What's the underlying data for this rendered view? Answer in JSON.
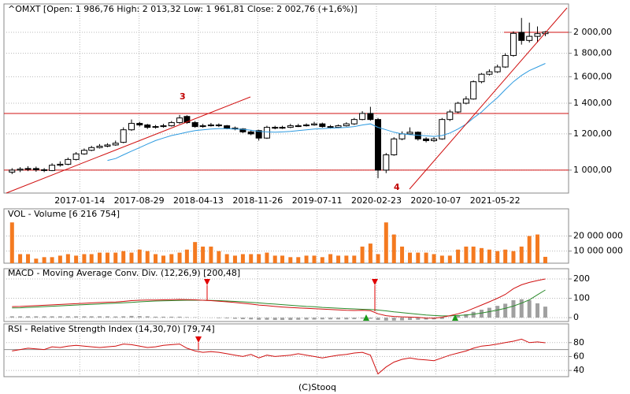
{
  "chart_data": [
    {
      "type": "candlestick",
      "title": "^OMXT [Open: 1 986,76  High: 2 013,32  Low: 1 961,81  Close: 2 002,76 (+1,6%)]",
      "x": [
        "2016-04-30",
        "2016-05-31",
        "2016-06-30",
        "2016-07-31",
        "2016-08-31",
        "2016-09-30",
        "2016-10-31",
        "2016-11-30",
        "2016-12-31",
        "2017-01-31",
        "2017-02-28",
        "2017-03-31",
        "2017-04-30",
        "2017-05-31",
        "2017-06-30",
        "2017-07-31",
        "2017-08-31",
        "2017-09-30",
        "2017-10-31",
        "2017-11-30",
        "2017-12-31",
        "2018-01-31",
        "2018-02-28",
        "2018-03-31",
        "2018-04-30",
        "2018-05-31",
        "2018-06-30",
        "2018-07-31",
        "2018-08-31",
        "2018-09-30",
        "2018-10-31",
        "2018-11-30",
        "2018-12-31",
        "2019-01-31",
        "2019-02-28",
        "2019-03-31",
        "2019-04-30",
        "2019-05-31",
        "2019-06-30",
        "2019-07-31",
        "2019-08-31",
        "2019-09-30",
        "2019-10-31",
        "2019-11-30",
        "2019-12-31",
        "2020-01-31",
        "2020-02-29",
        "2020-03-31",
        "2020-04-30",
        "2020-05-31",
        "2020-06-30",
        "2020-07-31",
        "2020-08-31",
        "2020-09-30",
        "2020-10-31",
        "2020-11-30",
        "2020-12-31",
        "2021-01-31",
        "2021-02-28",
        "2021-03-31",
        "2021-04-30",
        "2021-05-31",
        "2021-06-30",
        "2021-07-31",
        "2021-08-31",
        "2021-09-30",
        "2021-10-31",
        "2021-11-30"
      ],
      "open": [
        990,
        1000,
        1005,
        1008,
        1002,
        998,
        1025,
        1030,
        1055,
        1085,
        1105,
        1120,
        1128,
        1135,
        1150,
        1225,
        1265,
        1255,
        1240,
        1245,
        1250,
        1270,
        1310,
        1270,
        1245,
        1250,
        1255,
        1250,
        1235,
        1230,
        1212,
        1220,
        1175,
        1240,
        1235,
        1240,
        1250,
        1250,
        1255,
        1262,
        1245,
        1240,
        1250,
        1262,
        1290,
        1330,
        1290,
        1000,
        1080,
        1170,
        1200,
        1210,
        1170,
        1160,
        1170,
        1290,
        1340,
        1400,
        1430,
        1560,
        1620,
        1640,
        1680,
        1780,
        2000,
        1920,
        1960,
        1986.76
      ],
      "high": [
        1010,
        1015,
        1020,
        1018,
        1010,
        1035,
        1045,
        1065,
        1095,
        1115,
        1130,
        1140,
        1145,
        1160,
        1240,
        1290,
        1275,
        1262,
        1255,
        1262,
        1280,
        1320,
        1318,
        1280,
        1262,
        1268,
        1265,
        1255,
        1245,
        1235,
        1222,
        1225,
        1250,
        1250,
        1250,
        1262,
        1262,
        1265,
        1275,
        1270,
        1255,
        1258,
        1272,
        1300,
        1345,
        1375,
        1300,
        1090,
        1180,
        1215,
        1240,
        1215,
        1180,
        1180,
        1300,
        1355,
        1410,
        1450,
        1570,
        1630,
        1660,
        1700,
        1800,
        2010,
        2150,
        2100,
        2060,
        2013.32
      ],
      "low": [
        980,
        990,
        995,
        992,
        990,
        995,
        1018,
        1025,
        1050,
        1080,
        1100,
        1115,
        1122,
        1130,
        1145,
        1218,
        1245,
        1230,
        1232,
        1238,
        1245,
        1262,
        1262,
        1238,
        1238,
        1245,
        1242,
        1228,
        1222,
        1205,
        1192,
        1160,
        1170,
        1228,
        1230,
        1235,
        1242,
        1245,
        1250,
        1238,
        1232,
        1235,
        1245,
        1255,
        1285,
        1282,
        960,
        985,
        1075,
        1162,
        1195,
        1160,
        1150,
        1152,
        1165,
        1280,
        1332,
        1392,
        1425,
        1548,
        1610,
        1630,
        1672,
        1770,
        1880,
        1900,
        1900,
        1961.81
      ],
      "close": [
        1000,
        1005,
        1008,
        1002,
        998,
        1025,
        1030,
        1055,
        1085,
        1105,
        1120,
        1128,
        1135,
        1145,
        1225,
        1265,
        1255,
        1240,
        1245,
        1250,
        1270,
        1300,
        1270,
        1245,
        1250,
        1255,
        1250,
        1235,
        1230,
        1212,
        1200,
        1175,
        1240,
        1235,
        1240,
        1250,
        1250,
        1255,
        1262,
        1245,
        1240,
        1250,
        1262,
        1290,
        1330,
        1290,
        1000,
        1080,
        1170,
        1200,
        1210,
        1170,
        1160,
        1170,
        1290,
        1340,
        1400,
        1430,
        1560,
        1620,
        1640,
        1680,
        1780,
        1990,
        1920,
        1960,
        1986.76,
        2002.76
      ],
      "ma": {
        "color": "#2e9be0",
        "values": [
          null,
          null,
          null,
          null,
          null,
          null,
          null,
          null,
          null,
          null,
          null,
          null,
          1050,
          1060,
          1080,
          1100,
          1120,
          1140,
          1160,
          1175,
          1190,
          1200,
          1210,
          1220,
          1225,
          1230,
          1232,
          1232,
          1230,
          1228,
          1222,
          1215,
          1212,
          1210,
          1212,
          1215,
          1220,
          1225,
          1230,
          1232,
          1235,
          1237,
          1240,
          1245,
          1255,
          1262,
          1240,
          1225,
          1210,
          1200,
          1195,
          1192,
          1188,
          1185,
          1190,
          1205,
          1230,
          1260,
          1300,
          1340,
          1390,
          1440,
          1500,
          1560,
          1610,
          1650,
          1680,
          1710
        ]
      },
      "xlim": [
        "2016-04-08",
        "2022-02-27"
      ],
      "xticks": [
        "2017-01-14",
        "2017-08-29",
        "2018-04-13",
        "2018-11-26",
        "2019-07-11",
        "2020-02-23",
        "2020-10-07",
        "2021-05-22"
      ],
      "ylim": [
        891,
        2307
      ],
      "log_scale": true,
      "yticks": [
        {
          "value": 1000,
          "label": "1 000,00"
        },
        {
          "value": 1200,
          "label": "1 200,00"
        },
        {
          "value": 1400,
          "label": "1 400,00"
        },
        {
          "value": 1600,
          "label": "1 600,00"
        },
        {
          "value": 1800,
          "label": "1 800,00"
        },
        {
          "value": 2000,
          "label": "2 000,00"
        }
      ],
      "grid": true,
      "levels": [
        1330,
        1000,
        2000
      ],
      "level_color": "#d01010",
      "annotations": [
        "3",
        "4"
      ]
    },
    {
      "type": "bar",
      "title": "VOL - Volume [6 216 754]",
      "color": "#f47a20",
      "values": [
        29000000,
        8000000,
        8000000,
        5000000,
        6000000,
        6000000,
        7000000,
        8000000,
        7000000,
        8000000,
        8000000,
        9000000,
        9000000,
        9000000,
        10000000,
        9000000,
        11000000,
        10000000,
        8000000,
        7000000,
        8000000,
        9000000,
        11000000,
        16000000,
        13000000,
        13000000,
        10000000,
        8000000,
        7000000,
        8000000,
        8000000,
        8000000,
        9000000,
        7000000,
        7000000,
        6000000,
        6000000,
        7000000,
        7000000,
        6000000,
        8000000,
        7000000,
        7000000,
        7000000,
        13000000,
        15000000,
        8000000,
        29000000,
        21000000,
        13000000,
        9000000,
        9000000,
        9000000,
        8000000,
        7000000,
        7000000,
        11000000,
        13000000,
        13000000,
        12000000,
        11000000,
        10000000,
        11000000,
        10000000,
        13000000,
        20000000,
        21000000,
        6216754
      ],
      "ylim": [
        2000000,
        38000000
      ],
      "yticks": [
        {
          "value": 10000000,
          "label": "10 000 000"
        },
        {
          "value": 20000000,
          "label": "20 000 000"
        }
      ],
      "grid": true
    },
    {
      "type": "macd",
      "title": "MACD - Moving Average Conv. Div. (12,26,9) [200,48]",
      "series": [
        {
          "kind": "bar",
          "color": "#a0a0a0",
          "values": [
            7,
            7,
            7,
            7,
            7,
            7,
            7,
            7,
            7,
            7,
            7,
            7,
            7,
            6,
            7,
            9,
            8,
            7,
            5,
            5,
            5,
            5,
            3,
            2,
            0,
            -1,
            -3,
            -4,
            -6,
            -8,
            -9,
            -11,
            -11,
            -12,
            -12,
            -12,
            -11,
            -10,
            -10,
            -9,
            -9,
            -9,
            -9,
            -8,
            -5,
            -6,
            -12,
            -15,
            -15,
            -14,
            -12,
            -11,
            -10,
            -9,
            -7,
            1,
            9,
            18,
            30,
            41,
            51,
            61,
            72,
            90,
            95,
            90,
            74,
            57
          ]
        },
        {
          "kind": "line",
          "color": "#2a8a2a",
          "values": [
            50,
            51,
            53,
            55,
            57,
            59,
            61,
            63,
            65,
            67,
            69,
            71,
            73,
            75,
            77,
            79,
            82,
            84,
            86,
            87,
            88,
            89,
            90,
            90,
            90,
            89,
            88,
            86,
            84,
            82,
            79,
            76,
            73,
            70,
            67,
            64,
            61,
            58,
            56,
            53,
            51,
            49,
            47,
            45,
            43,
            42,
            39,
            35,
            30,
            26,
            22,
            18,
            14,
            11,
            9,
            9,
            11,
            14,
            18,
            24,
            31,
            39,
            48,
            60,
            75,
            92,
            118,
            143
          ]
        },
        {
          "kind": "line",
          "color": "#d01010",
          "values": [
            57,
            58,
            60,
            62,
            64,
            66,
            68,
            70,
            72,
            74,
            76,
            78,
            80,
            81,
            84,
            88,
            90,
            91,
            91,
            92,
            93,
            94,
            93,
            92,
            90,
            88,
            85,
            82,
            78,
            74,
            70,
            65,
            62,
            58,
            55,
            52,
            50,
            48,
            46,
            44,
            42,
            40,
            38,
            37,
            38,
            36,
            20,
            10,
            6,
            4,
            3,
            1,
            -2,
            -3,
            2,
            10,
            20,
            32,
            48,
            65,
            82,
            100,
            120,
            150,
            170,
            182,
            192,
            200
          ]
        }
      ],
      "ylim": [
        -20,
        253
      ],
      "yticks": [
        0,
        100,
        200
      ],
      "grid": true
    },
    {
      "type": "line",
      "title": "RSI - Relative Strength Index (14,30,70) [79,74]",
      "color": "#d01010",
      "values": [
        68,
        70,
        72,
        71,
        70,
        74,
        73,
        75,
        76,
        75,
        74,
        73,
        74,
        75,
        78,
        77,
        75,
        73,
        74,
        76,
        77,
        78,
        72,
        68,
        66,
        67,
        66,
        64,
        62,
        60,
        63,
        58,
        62,
        60,
        61,
        62,
        64,
        62,
        60,
        58,
        60,
        62,
        63,
        65,
        66,
        62,
        35,
        45,
        52,
        56,
        58,
        56,
        55,
        54,
        58,
        62,
        65,
        68,
        72,
        75,
        76,
        78,
        80,
        82,
        85,
        80,
        81,
        79.74
      ],
      "ylim": [
        31,
        107
      ],
      "yticks": [
        40,
        60,
        80
      ],
      "levels": [
        70
      ],
      "level_color": "#909090",
      "grid": true
    }
  ],
  "footer": "(C)Stooq"
}
